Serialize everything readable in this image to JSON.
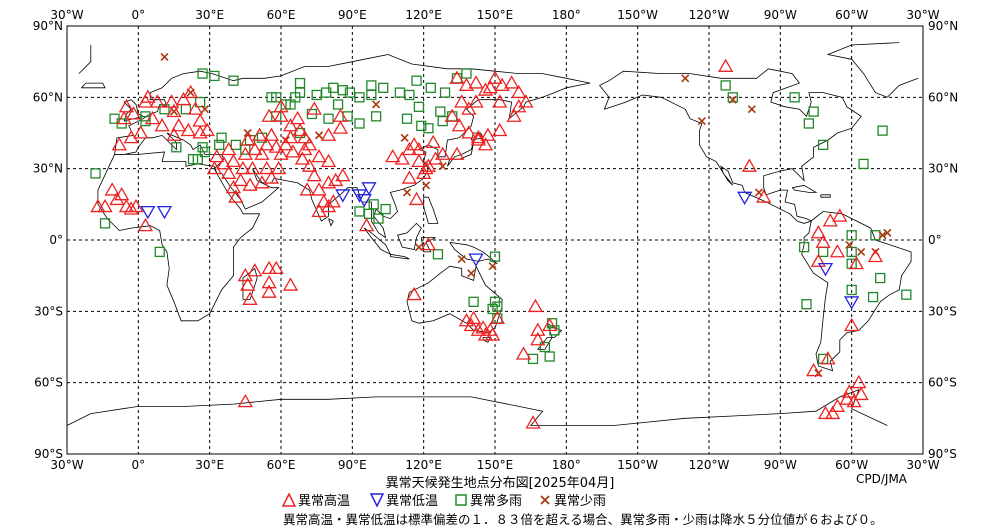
{
  "map": {
    "lon_labels_top": [
      "30°W",
      "0°",
      "30°E",
      "60°E",
      "90°E",
      "120°E",
      "150°E",
      "180°",
      "150°W",
      "120°W",
      "90°W",
      "60°W",
      "30°W"
    ],
    "lon_labels_bottom": [
      "30°W",
      "0°",
      "30°E",
      "60°E",
      "90°E",
      "120°E",
      "150°E",
      "180°",
      "150°W",
      "120°W",
      "90°W",
      "60°W",
      "30°W"
    ],
    "lat_labels": [
      "90°N",
      "60°N",
      "30°N",
      "0°",
      "30°S",
      "60°S",
      "90°S"
    ],
    "lon_range": [
      -30,
      330
    ],
    "lat_range": [
      90,
      -90
    ]
  },
  "title": "異常天候発生地点分布図[2025年04月]",
  "credit": "CPD/JMA",
  "legend": {
    "high_temp": "異常高温",
    "low_temp": "異常低温",
    "heavy_rain": "異常多雨",
    "light_rain": "異常少雨"
  },
  "note": "異常高温・異常低温は標準偏差の１．８３倍を超える場合、異常多雨・少雨は降水５分位値が６および０。",
  "colors": {
    "high_temp": "#ee2222",
    "low_temp": "#2222dd",
    "heavy_rain": "#22882a",
    "light_rain": "#a83a10",
    "coast": "#000000",
    "grid": "#000000"
  },
  "observations": {
    "high_temp": [
      [
        -5,
        56
      ],
      [
        -2,
        53
      ],
      [
        -6,
        51
      ],
      [
        -3,
        43
      ],
      [
        -8,
        40
      ],
      [
        1,
        45
      ],
      [
        3,
        58
      ],
      [
        4,
        60
      ],
      [
        8,
        58
      ],
      [
        14,
        58
      ],
      [
        19,
        59
      ],
      [
        22,
        62
      ],
      [
        15,
        54
      ],
      [
        6,
        51
      ],
      [
        24,
        55
      ],
      [
        26,
        50
      ],
      [
        15,
        44
      ],
      [
        21,
        46
      ],
      [
        26,
        45
      ],
      [
        10,
        48
      ],
      [
        29,
        46
      ],
      [
        17,
        48
      ],
      [
        33,
        35
      ],
      [
        36,
        32
      ],
      [
        32,
        30
      ],
      [
        38,
        38
      ],
      [
        40,
        33
      ],
      [
        44,
        30
      ],
      [
        48,
        30
      ],
      [
        43,
        25
      ],
      [
        47,
        23
      ],
      [
        52,
        24
      ],
      [
        56,
        26
      ],
      [
        38,
        28
      ],
      [
        40,
        22
      ],
      [
        41,
        18
      ],
      [
        45,
        36
      ],
      [
        49,
        38
      ],
      [
        52,
        36
      ],
      [
        54,
        40
      ],
      [
        58,
        39
      ],
      [
        62,
        40
      ],
      [
        65,
        37
      ],
      [
        69,
        34
      ],
      [
        72,
        31
      ],
      [
        74,
        27
      ],
      [
        76,
        35
      ],
      [
        80,
        33
      ],
      [
        59,
        30
      ],
      [
        60,
        36
      ],
      [
        54,
        30
      ],
      [
        46,
        42
      ],
      [
        51,
        44
      ],
      [
        56,
        44
      ],
      [
        64,
        43
      ],
      [
        68,
        46
      ],
      [
        70,
        43
      ],
      [
        70,
        38
      ],
      [
        71,
        21
      ],
      [
        76,
        21
      ],
      [
        80,
        24
      ],
      [
        86,
        27
      ],
      [
        83,
        25
      ],
      [
        80,
        14
      ],
      [
        78,
        16
      ],
      [
        76,
        12
      ],
      [
        82,
        16
      ],
      [
        55,
        52
      ],
      [
        60,
        52
      ],
      [
        60,
        56
      ],
      [
        67,
        51
      ],
      [
        74,
        55
      ],
      [
        80,
        44
      ],
      [
        85,
        47
      ],
      [
        85,
        52
      ],
      [
        64,
        48
      ],
      [
        72,
        40
      ],
      [
        -17,
        14
      ],
      [
        -14,
        14
      ],
      [
        -9,
        17
      ],
      [
        -5,
        14
      ],
      [
        -1,
        14
      ],
      [
        -3,
        13
      ],
      [
        3,
        6
      ],
      [
        -7,
        19
      ],
      [
        -11,
        21
      ],
      [
        107,
        35
      ],
      [
        114,
        38
      ],
      [
        116,
        40
      ],
      [
        118,
        33
      ],
      [
        121,
        30
      ],
      [
        125,
        34
      ],
      [
        128,
        36
      ],
      [
        124,
        41
      ],
      [
        114,
        26
      ],
      [
        111,
        34
      ],
      [
        118,
        38
      ],
      [
        120,
        28
      ],
      [
        122,
        31
      ],
      [
        134,
        36
      ],
      [
        139,
        45
      ],
      [
        143,
        43
      ],
      [
        135,
        48
      ],
      [
        132,
        52
      ],
      [
        136,
        58
      ],
      [
        138,
        65
      ],
      [
        134,
        68
      ],
      [
        142,
        66
      ],
      [
        146,
        63
      ],
      [
        150,
        68
      ],
      [
        153,
        65
      ],
      [
        157,
        66
      ],
      [
        160,
        62
      ],
      [
        160,
        56
      ],
      [
        158,
        52
      ],
      [
        152,
        46
      ],
      [
        147,
        44
      ],
      [
        143,
        42
      ],
      [
        146,
        40
      ],
      [
        139,
        55
      ],
      [
        142,
        58
      ],
      [
        148,
        64
      ],
      [
        152,
        58
      ],
      [
        163,
        58
      ],
      [
        117,
        17
      ],
      [
        96,
        6
      ],
      [
        122,
        -2
      ],
      [
        116,
        -23
      ],
      [
        140,
        -36
      ],
      [
        143,
        -38
      ],
      [
        146,
        -40
      ],
      [
        148,
        -38
      ],
      [
        138,
        -34
      ],
      [
        141,
        -33
      ],
      [
        145,
        -37
      ],
      [
        149,
        -40
      ],
      [
        151,
        -33
      ],
      [
        167,
        -28
      ],
      [
        168,
        -38
      ],
      [
        162,
        -48
      ],
      [
        173,
        -36
      ],
      [
        168,
        -42
      ],
      [
        166,
        -77
      ],
      [
        45,
        -15
      ],
      [
        46,
        -19
      ],
      [
        49,
        -13
      ],
      [
        55,
        -12
      ],
      [
        55,
        -18
      ],
      [
        55,
        -22
      ],
      [
        58,
        -12
      ],
      [
        64,
        -19
      ],
      [
        47,
        -25
      ],
      [
        45,
        -68
      ],
      [
        -65,
        10
      ],
      [
        -72,
        -1
      ],
      [
        -74,
        -9
      ],
      [
        -74,
        3
      ],
      [
        -66,
        -5
      ],
      [
        -69,
        8
      ],
      [
        -76,
        -55
      ],
      [
        -70,
        -50
      ],
      [
        -66,
        -70
      ],
      [
        -62,
        -67
      ],
      [
        -59,
        -68
      ],
      [
        -61,
        -64
      ],
      [
        -56,
        -65
      ],
      [
        -68,
        -73
      ],
      [
        -71,
        -73
      ],
      [
        -57,
        -60
      ],
      [
        -113,
        73
      ],
      [
        -103,
        31
      ],
      [
        -97,
        18
      ],
      [
        -60,
        -36
      ],
      [
        -50,
        -7
      ],
      [
        -58,
        -10
      ]
    ],
    "low_temp": [
      [
        4,
        12
      ],
      [
        11,
        12
      ],
      [
        86,
        19
      ],
      [
        93,
        19
      ],
      [
        97,
        22
      ],
      [
        95,
        17
      ],
      [
        142,
        -8
      ],
      [
        -105,
        18
      ],
      [
        -60,
        -26
      ],
      [
        -71,
        -12
      ]
    ],
    "heavy_rain": [
      [
        -18,
        28
      ],
      [
        -14,
        7
      ],
      [
        -10,
        51
      ],
      [
        -7,
        49
      ],
      [
        3,
        52
      ],
      [
        3,
        50
      ],
      [
        11,
        55
      ],
      [
        16,
        39
      ],
      [
        27,
        39
      ],
      [
        25,
        34
      ],
      [
        28,
        37
      ],
      [
        34,
        40
      ],
      [
        35,
        43
      ],
      [
        41,
        40
      ],
      [
        45,
        38
      ],
      [
        47,
        42
      ],
      [
        52,
        43
      ],
      [
        58,
        52
      ],
      [
        58,
        60
      ],
      [
        56,
        60
      ],
      [
        62,
        57
      ],
      [
        66,
        60
      ],
      [
        68,
        66
      ],
      [
        68,
        62
      ],
      [
        68,
        45
      ],
      [
        75,
        61
      ],
      [
        79,
        62
      ],
      [
        82,
        64
      ],
      [
        86,
        63
      ],
      [
        89,
        62
      ],
      [
        93,
        60
      ],
      [
        98,
        61
      ],
      [
        98,
        65
      ],
      [
        103,
        64
      ],
      [
        110,
        62
      ],
      [
        114,
        61
      ],
      [
        117,
        67
      ],
      [
        123,
        64
      ],
      [
        129,
        62
      ],
      [
        134,
        68
      ],
      [
        138,
        70
      ],
      [
        127,
        54
      ],
      [
        122,
        47
      ],
      [
        128,
        50
      ],
      [
        132,
        52
      ],
      [
        118,
        56
      ],
      [
        119,
        48
      ],
      [
        113,
        51
      ],
      [
        100,
        52
      ],
      [
        93,
        49
      ],
      [
        88,
        52
      ],
      [
        84,
        57
      ],
      [
        80,
        51
      ],
      [
        73,
        53
      ],
      [
        64,
        57
      ],
      [
        20,
        55
      ],
      [
        26,
        58
      ],
      [
        27,
        70
      ],
      [
        32,
        69
      ],
      [
        40,
        67
      ],
      [
        23,
        34
      ],
      [
        9,
        -5
      ],
      [
        93,
        12
      ],
      [
        97,
        11
      ],
      [
        99,
        15
      ],
      [
        104,
        13
      ],
      [
        101,
        9
      ],
      [
        141,
        -26
      ],
      [
        150,
        -26
      ],
      [
        151,
        -28
      ],
      [
        149,
        -29
      ],
      [
        151,
        -33
      ],
      [
        126,
        -6
      ],
      [
        150,
        -7
      ],
      [
        174,
        -35
      ],
      [
        175,
        -38
      ],
      [
        171,
        -45
      ],
      [
        173,
        -49
      ],
      [
        166,
        -50
      ],
      [
        -55,
        32
      ],
      [
        -47,
        46
      ],
      [
        -72,
        40
      ],
      [
        -78,
        49
      ],
      [
        -76,
        54
      ],
      [
        -84,
        60
      ],
      [
        -110,
        60
      ],
      [
        -113,
        65
      ],
      [
        -80,
        -3
      ],
      [
        -72,
        -5
      ],
      [
        -60,
        2
      ],
      [
        -50,
        2
      ],
      [
        -60,
        -5
      ],
      [
        -37,
        -23
      ],
      [
        -48,
        -16
      ],
      [
        -51,
        -24
      ],
      [
        -60,
        -21
      ],
      [
        -72,
        -50
      ],
      [
        -79,
        -27
      ],
      [
        -60,
        -10
      ]
    ],
    "light_rain": [
      [
        11,
        77
      ],
      [
        22,
        62
      ],
      [
        15,
        54
      ],
      [
        28,
        55
      ],
      [
        46,
        45
      ],
      [
        62,
        42
      ],
      [
        76,
        44
      ],
      [
        100,
        57
      ],
      [
        113,
        20
      ],
      [
        121,
        23
      ],
      [
        128,
        31
      ],
      [
        112,
        43
      ],
      [
        118,
        -3
      ],
      [
        136,
        -8
      ],
      [
        140,
        -14
      ],
      [
        149,
        -11
      ],
      [
        -130,
        68
      ],
      [
        -123,
        50
      ],
      [
        -110,
        59
      ],
      [
        -102,
        55
      ],
      [
        -99,
        20
      ],
      [
        -74,
        -56
      ],
      [
        -61,
        -2
      ],
      [
        -56,
        -5
      ],
      [
        -50,
        -5
      ],
      [
        -47,
        2
      ],
      [
        -45,
        3
      ]
    ]
  }
}
